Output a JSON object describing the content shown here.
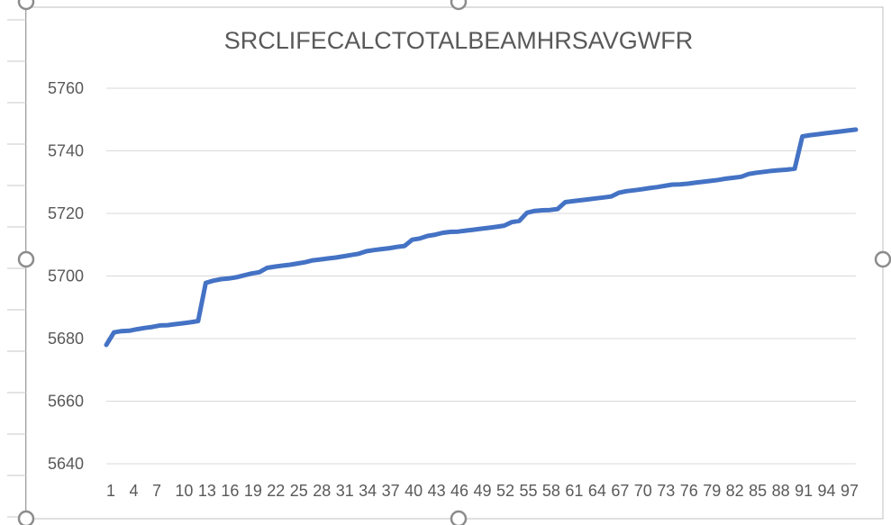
{
  "colors": {
    "series": "#4472C4",
    "gridline": "#d9d9d9",
    "text": "#595959",
    "frame": "#bfbfbf",
    "handle": "#8c8c8c",
    "left_ruler": "#7f7f7f"
  },
  "chart_data": {
    "type": "line",
    "title": "SRCLIFECALCTOTALBEAMHRSAVGWFR",
    "xlabel": "",
    "ylabel": "",
    "ylim": [
      5640,
      5760
    ],
    "yticks": [
      5640,
      5660,
      5680,
      5700,
      5720,
      5740,
      5760
    ],
    "xlim": [
      1,
      99
    ],
    "x_tick_labels": [
      "1",
      "4",
      "7",
      "10",
      "13",
      "16",
      "19",
      "22",
      "25",
      "28",
      "31",
      "34",
      "37",
      "40",
      "43",
      "46",
      "49",
      "52",
      "55",
      "58",
      "61",
      "64",
      "67",
      "70",
      "73",
      "76",
      "79",
      "82",
      "85",
      "88",
      "91",
      "94",
      "97"
    ],
    "grid": true,
    "legend": "none",
    "series": [
      {
        "x": [
          1,
          2,
          3,
          4,
          5,
          6,
          7,
          8,
          9,
          10,
          11,
          12,
          13,
          14,
          15,
          16,
          17,
          18,
          19,
          20,
          21,
          22,
          23,
          24,
          25,
          26,
          27,
          28,
          29,
          30,
          31,
          32,
          33,
          34,
          35,
          36,
          37,
          38,
          39,
          40,
          41,
          42,
          43,
          44,
          45,
          46,
          47,
          48,
          49,
          50,
          51,
          52,
          53,
          54,
          55,
          56,
          57,
          58,
          59,
          60,
          61,
          62,
          63,
          64,
          65,
          66,
          67,
          68,
          69,
          70,
          71,
          72,
          73,
          74,
          75,
          76,
          77,
          78,
          79,
          80,
          81,
          82,
          83,
          84,
          85,
          86,
          87,
          88,
          89,
          90,
          91,
          92,
          93,
          94,
          95,
          96,
          97,
          98,
          99
        ],
        "values": [
          5678,
          5682,
          5682.4,
          5682.5,
          5683,
          5683.4,
          5683.7,
          5684.2,
          5684.3,
          5684.6,
          5684.9,
          5685.2,
          5685.6,
          5697.8,
          5698.5,
          5699,
          5699.2,
          5699.6,
          5700.2,
          5700.8,
          5701.2,
          5702.6,
          5703,
          5703.3,
          5703.6,
          5704,
          5704.4,
          5705,
          5705.3,
          5705.6,
          5705.9,
          5706.3,
          5706.7,
          5707.1,
          5707.9,
          5708.3,
          5708.6,
          5708.9,
          5709.3,
          5709.6,
          5711.6,
          5712,
          5712.8,
          5713.2,
          5713.8,
          5714.1,
          5714.2,
          5714.5,
          5714.8,
          5715.1,
          5715.4,
          5715.7,
          5716.1,
          5717.2,
          5717.6,
          5720.2,
          5720.8,
          5721,
          5721.1,
          5721.4,
          5723.6,
          5723.9,
          5724.2,
          5724.5,
          5724.8,
          5725.1,
          5725.4,
          5726.6,
          5727.1,
          5727.4,
          5727.7,
          5728.1,
          5728.4,
          5728.8,
          5729.2,
          5729.3,
          5729.5,
          5729.8,
          5730.1,
          5730.4,
          5730.7,
          5731.1,
          5731.4,
          5731.7,
          5732.6,
          5733,
          5733.3,
          5733.6,
          5733.8,
          5734,
          5734.3,
          5744.6,
          5745,
          5745.3,
          5745.6,
          5745.9,
          5746.2,
          5746.5,
          5746.8
        ]
      }
    ]
  }
}
